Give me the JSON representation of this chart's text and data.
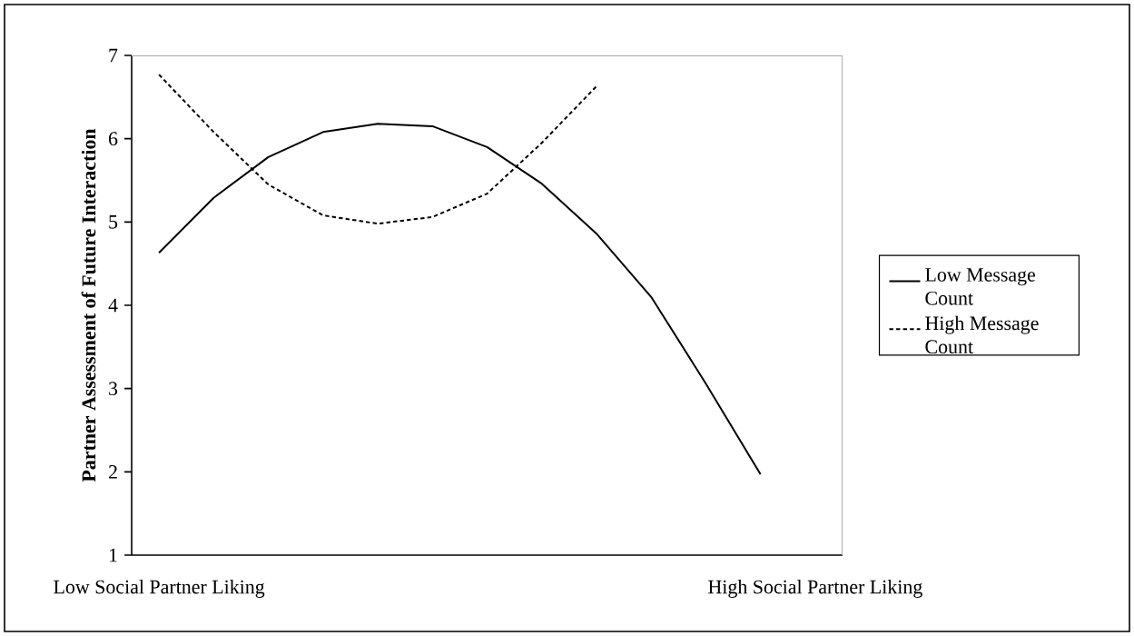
{
  "chart_data": {
    "type": "line",
    "ylabel": "Partner Assessment of Future Interaction",
    "categories": [
      "Low Social Partner Liking",
      null,
      null,
      null,
      null,
      null,
      null,
      null,
      null,
      null,
      null,
      null,
      "High Social Partner Liking"
    ],
    "series": [
      {
        "name": "Low Message Count",
        "color": "#000000",
        "line_style": "solid",
        "values": [
          4.63,
          5.29,
          5.78,
          6.08,
          6.18,
          6.15,
          5.9,
          5.46,
          4.86,
          4.1,
          3.06,
          1.97,
          null
        ]
      },
      {
        "name": "High Message Count",
        "color": "#000000",
        "line_style": "dashed",
        "values": [
          6.77,
          6.08,
          5.45,
          5.08,
          4.98,
          5.06,
          5.34,
          5.95,
          6.63,
          null,
          null,
          null,
          null
        ]
      }
    ],
    "ylim": [
      1,
      7
    ],
    "yticks": [
      1,
      2,
      3,
      4,
      5,
      6,
      7
    ],
    "legend": "right",
    "grid": false
  }
}
